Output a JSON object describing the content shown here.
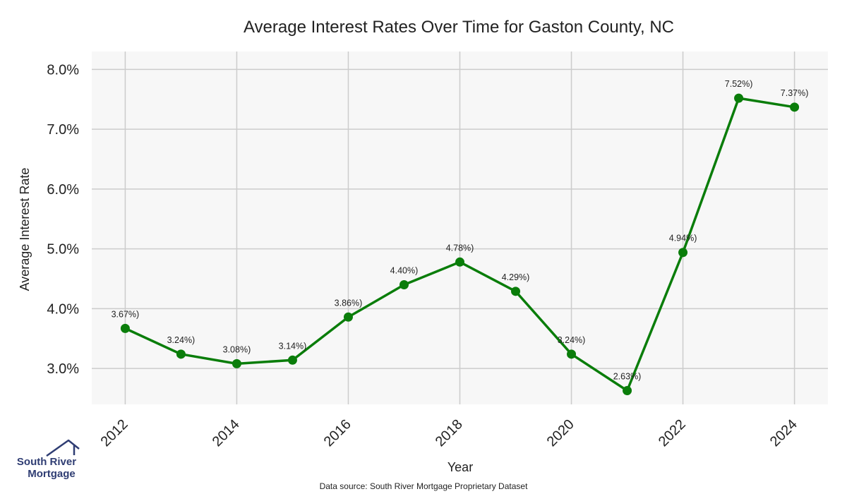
{
  "chart_data": {
    "type": "line",
    "title": "Average Interest Rates Over Time for Gaston County, NC",
    "xlabel": "Year",
    "ylabel": "Average Interest Rate",
    "x": [
      2012,
      2013,
      2014,
      2015,
      2016,
      2017,
      2018,
      2019,
      2020,
      2021,
      2022,
      2023,
      2024
    ],
    "series": [
      {
        "values": [
          3.67,
          3.24,
          3.08,
          3.14,
          3.86,
          4.4,
          4.78,
          4.29,
          3.24,
          2.63,
          4.94,
          7.52,
          7.37
        ],
        "color": "#0a7d0a"
      }
    ],
    "data_labels": [
      "3.67%)",
      "3.24%)",
      "3.08%)",
      "3.14%)",
      "3.86%)",
      "4.40%)",
      "4.78%)",
      "4.29%)",
      "3.24%)",
      "2.63%)",
      "4.94%)",
      "7.52%)",
      "7.37%)"
    ],
    "x_ticks": [
      "2012",
      "2014",
      "2016",
      "2018",
      "2020",
      "2022",
      "2024"
    ],
    "y_ticks": [
      "3.0%",
      "4.0%",
      "5.0%",
      "6.0%",
      "7.0%",
      "8.0%"
    ],
    "xlim": [
      2011.4,
      2024.6
    ],
    "ylim": [
      2.4,
      8.3
    ],
    "grid": true,
    "plot_background": "#f7f7f7",
    "grid_color": "#cccccc"
  },
  "footer": {
    "source": "Data source: South River Mortgage Proprietary Dataset"
  },
  "logo": {
    "line1": "South River",
    "line2": "Mortgage",
    "color": "#2f3d73"
  }
}
